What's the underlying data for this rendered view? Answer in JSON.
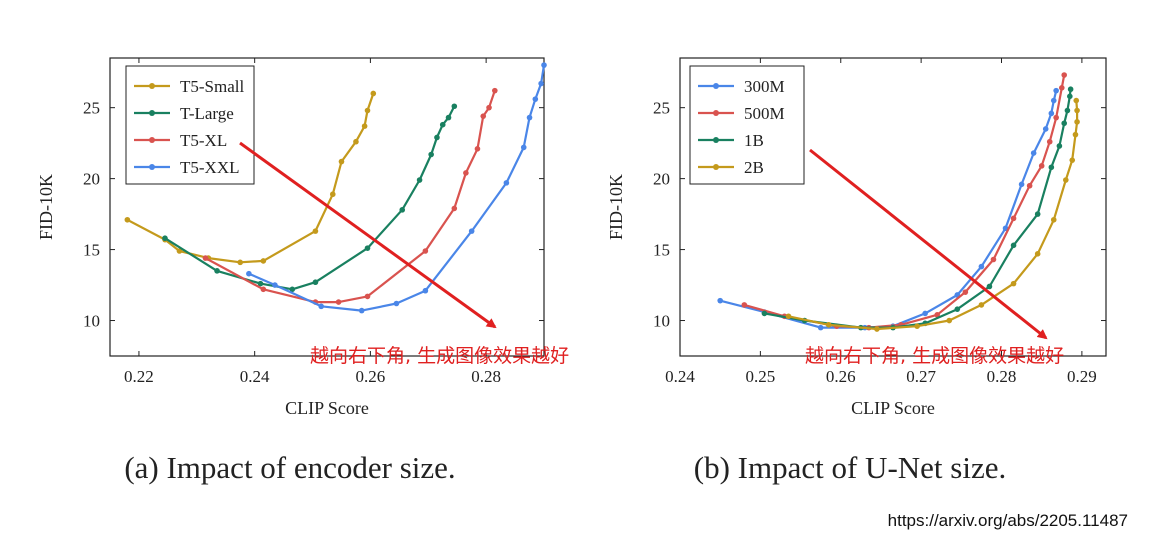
{
  "chart_data": [
    {
      "type": "line",
      "caption": "(a) Impact of encoder size.",
      "xlabel": "CLIP Score",
      "ylabel": "FID-10K",
      "xlim": [
        0.215,
        0.29
      ],
      "ylim": [
        7.5,
        28.5
      ],
      "xticks": [
        0.22,
        0.24,
        0.26,
        0.28
      ],
      "xtick_labels": [
        "0.22",
        "0.24",
        "0.26",
        "0.28"
      ],
      "yticks": [
        10,
        15,
        20,
        25
      ],
      "ytick_labels": [
        "10",
        "15",
        "20",
        "25"
      ],
      "legend_position": "top-left",
      "annotation": "越向右下角, 生成图像效果越好",
      "series": [
        {
          "name": "T5-Small",
          "color": "#c49a1c",
          "x": [
            0.218,
            0.2245,
            0.227,
            0.232,
            0.2375,
            0.2415,
            0.2505,
            0.2535,
            0.255,
            0.2575,
            0.259,
            0.2595,
            0.2605
          ],
          "y": [
            17.1,
            15.7,
            14.9,
            14.4,
            14.1,
            14.2,
            16.3,
            18.9,
            21.2,
            22.6,
            23.7,
            24.8,
            26.0
          ]
        },
        {
          "name": "T-Large",
          "color": "#198060",
          "x": [
            0.2245,
            0.2335,
            0.241,
            0.2465,
            0.2505,
            0.2595,
            0.2655,
            0.2685,
            0.2705,
            0.2715,
            0.2725,
            0.2735,
            0.2745
          ],
          "y": [
            15.8,
            13.5,
            12.6,
            12.2,
            12.7,
            15.1,
            17.8,
            19.9,
            21.7,
            22.9,
            23.8,
            24.3,
            25.1
          ]
        },
        {
          "name": "T5-XL",
          "color": "#d9534f",
          "x": [
            0.2315,
            0.2415,
            0.2505,
            0.2545,
            0.2595,
            0.2695,
            0.2745,
            0.2765,
            0.2785,
            0.2795,
            0.2805,
            0.2815
          ],
          "y": [
            14.4,
            12.2,
            11.3,
            11.3,
            11.7,
            14.9,
            17.9,
            20.4,
            22.1,
            24.4,
            25.0,
            26.2
          ]
        },
        {
          "name": "T5-XXL",
          "color": "#4a86e8",
          "x": [
            0.239,
            0.2435,
            0.2515,
            0.2585,
            0.2645,
            0.2695,
            0.2775,
            0.2835,
            0.2865,
            0.2875,
            0.2885,
            0.2895,
            0.29
          ],
          "y": [
            13.3,
            12.5,
            11.0,
            10.7,
            11.2,
            12.1,
            16.3,
            19.7,
            22.2,
            24.3,
            25.6,
            26.7,
            28.0
          ]
        }
      ]
    },
    {
      "type": "line",
      "caption": "(b) Impact of U-Net size.",
      "xlabel": "CLIP Score",
      "ylabel": "FID-10K",
      "xlim": [
        0.24,
        0.293
      ],
      "ylim": [
        7.5,
        28.5
      ],
      "xticks": [
        0.24,
        0.25,
        0.26,
        0.27,
        0.28,
        0.29
      ],
      "xtick_labels": [
        "0.24",
        "0.25",
        "0.26",
        "0.27",
        "0.28",
        "0.29"
      ],
      "yticks": [
        10,
        15,
        20,
        25
      ],
      "ytick_labels": [
        "10",
        "15",
        "20",
        "25"
      ],
      "legend_position": "top-left",
      "annotation": "越向右下角, 生成图像效果越好",
      "series": [
        {
          "name": "300M",
          "color": "#4a86e8",
          "x": [
            0.245,
            0.2505,
            0.2575,
            0.263,
            0.2665,
            0.2705,
            0.2745,
            0.2775,
            0.2805,
            0.2825,
            0.284,
            0.2855,
            0.2862,
            0.2865,
            0.2868
          ],
          "y": [
            11.4,
            10.6,
            9.5,
            9.5,
            9.6,
            10.5,
            11.8,
            13.8,
            16.5,
            19.6,
            21.8,
            23.5,
            24.6,
            25.5,
            26.2
          ]
        },
        {
          "name": "500M",
          "color": "#d9534f",
          "x": [
            0.248,
            0.253,
            0.2595,
            0.2635,
            0.2675,
            0.272,
            0.2755,
            0.279,
            0.2815,
            0.2835,
            0.285,
            0.286,
            0.2868,
            0.2875,
            0.2878
          ],
          "y": [
            11.1,
            10.3,
            9.6,
            9.5,
            9.7,
            10.4,
            12.0,
            14.3,
            17.2,
            19.5,
            20.9,
            22.6,
            24.3,
            26.4,
            27.3
          ]
        },
        {
          "name": "1B",
          "color": "#198060",
          "x": [
            0.2505,
            0.2555,
            0.2625,
            0.2665,
            0.2705,
            0.2745,
            0.2785,
            0.2815,
            0.2845,
            0.2862,
            0.2872,
            0.2878,
            0.2882,
            0.2885,
            0.2886
          ],
          "y": [
            10.5,
            10.0,
            9.5,
            9.5,
            9.8,
            10.8,
            12.4,
            15.3,
            17.5,
            20.8,
            22.3,
            23.9,
            24.8,
            25.8,
            26.3
          ]
        },
        {
          "name": "2B",
          "color": "#c49a1c",
          "x": [
            0.2535,
            0.2585,
            0.2645,
            0.2695,
            0.2735,
            0.2775,
            0.2815,
            0.2845,
            0.2865,
            0.288,
            0.2888,
            0.2892,
            0.2894,
            0.2894,
            0.2893
          ],
          "y": [
            10.3,
            9.7,
            9.4,
            9.6,
            10.0,
            11.1,
            12.6,
            14.7,
            17.1,
            19.9,
            21.3,
            23.1,
            24.0,
            24.8,
            25.5
          ]
        }
      ]
    }
  ],
  "source_url": "https://arxiv.org/abs/2205.11487"
}
